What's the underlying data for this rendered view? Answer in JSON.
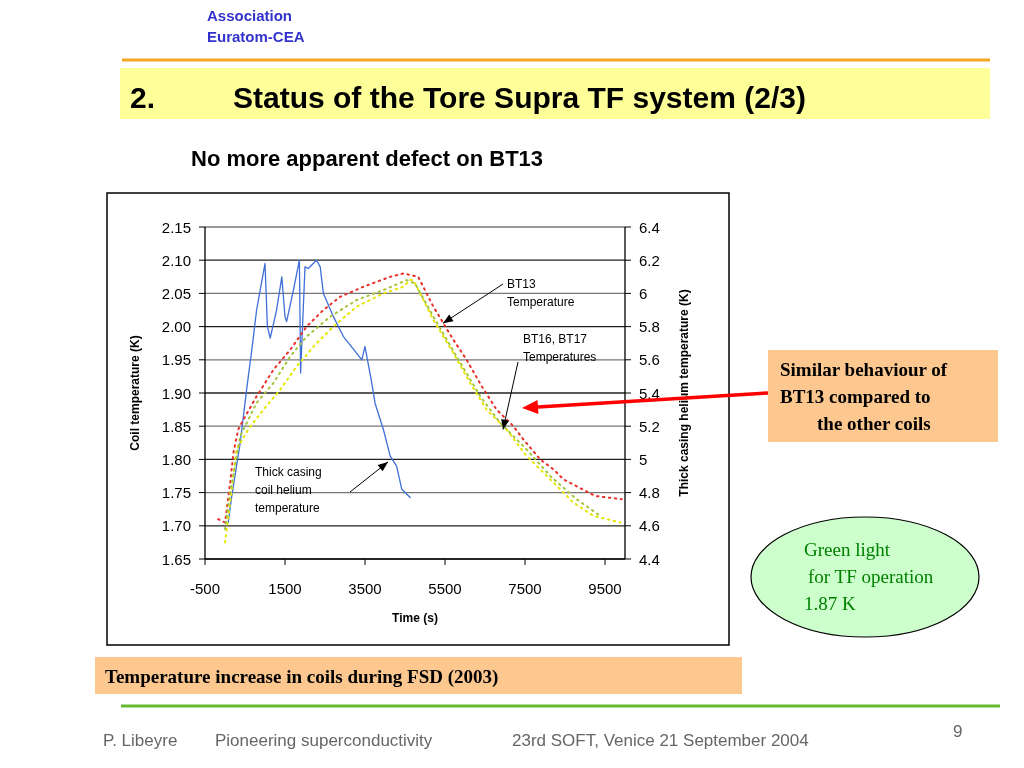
{
  "chart_data": {
    "type": "line",
    "title": "2. Status of the Tore Supra TF system (2/3)",
    "subtitle": "No more apparent defect on BT13",
    "xlabel": "Time (s)",
    "ylabel": "Coil temperature (K)",
    "y2label": "Thick casing helium temperature (K)",
    "xlim": [
      -500,
      10000
    ],
    "xticks": [
      -500,
      1500,
      3500,
      5500,
      7500,
      9500
    ],
    "ylim": [
      1.65,
      2.15
    ],
    "yticks": [
      1.65,
      {
        "value": 1.7,
        "label": "1.70"
      },
      1.75,
      {
        "value": 1.8,
        "label": "1.80"
      },
      1.85,
      {
        "value": 1.9,
        "label": "1.90"
      },
      1.95,
      {
        "value": 2.0,
        "label": "2.00"
      },
      2.05,
      {
        "value": 2.1,
        "label": "2.10"
      },
      2.15
    ],
    "y2lim": [
      4.4,
      6.4
    ],
    "y2ticks": [
      4.4,
      4.6,
      4.8,
      5,
      5.2,
      5.4,
      5.6,
      5.8,
      6,
      6.2,
      6.4
    ],
    "grid": "y",
    "series": [
      {
        "color": "#3f6fd8",
        "axis": "y2",
        "line_style": "solid",
        "x": [
          80,
          170,
          380,
          540,
          670,
          790,
          880,
          1000,
          1060,
          1130,
          1290,
          1420,
          1500,
          1540,
          1710,
          1860,
          1890,
          2000,
          2080,
          2290,
          2380,
          2460,
          2710,
          2960,
          3290,
          3420,
          3500,
          3670,
          3750,
          3960,
          4130,
          4290,
          4420,
          4630
        ],
        "values": [
          4.62,
          4.78,
          5.1,
          5.42,
          5.66,
          5.9,
          6.02,
          6.18,
          5.8,
          5.73,
          5.9,
          6.1,
          5.86,
          5.83,
          6.02,
          6.2,
          5.52,
          6.16,
          6.15,
          6.2,
          6.16,
          6.0,
          5.86,
          5.74,
          5.64,
          5.6,
          5.68,
          5.46,
          5.34,
          5.18,
          5.02,
          4.96,
          4.82,
          4.77
        ]
      },
      {
        "color": "#e8302a",
        "line_style": "dotted",
        "x": [
          -170,
          0,
          130,
          210,
          330,
          460,
          790,
          1210,
          1630,
          2040,
          2460,
          2880,
          3460,
          4130,
          4460,
          4830,
          5210,
          5460,
          5710,
          6040,
          6420,
          6790,
          7210,
          7460,
          7880,
          8210,
          8460,
          9250,
          9920
        ],
        "values": [
          1.71,
          1.705,
          1.765,
          1.81,
          1.845,
          1.86,
          1.895,
          1.935,
          1.965,
          2.0,
          2.025,
          2.045,
          2.06,
          2.075,
          2.08,
          2.075,
          2.03,
          2.005,
          1.98,
          1.95,
          1.91,
          1.875,
          1.85,
          1.83,
          1.8,
          1.785,
          1.77,
          1.745,
          1.74
        ]
      },
      {
        "color": "#e6e600",
        "line_style": "dotted",
        "x": [
          0,
          130,
          290,
          580,
          960,
          1380,
          1790,
          2290,
          2710,
          3290,
          3960,
          4460,
          4630,
          4710,
          5210,
          5710,
          6130,
          6540,
          7040,
          7540,
          8130,
          8710,
          9210,
          9880
        ],
        "values": [
          1.675,
          1.735,
          1.815,
          1.845,
          1.875,
          1.905,
          1.94,
          1.975,
          2.0,
          2.03,
          2.05,
          2.06,
          2.07,
          2.07,
          2.01,
          1.96,
          1.915,
          1.875,
          1.845,
          1.805,
          1.77,
          1.735,
          1.715,
          1.705
        ]
      },
      {
        "color": "#a4c43c",
        "line_style": "dotted",
        "x": [
          0,
          130,
          380,
          790,
          1210,
          1630,
          2040,
          2630,
          3290,
          3960,
          4540,
          4750,
          5210,
          5790,
          6380,
          6880,
          7540,
          8130,
          8790,
          9380
        ],
        "values": [
          1.695,
          1.75,
          1.835,
          1.885,
          1.915,
          1.955,
          1.985,
          2.015,
          2.04,
          2.055,
          2.07,
          2.065,
          2.015,
          1.955,
          1.895,
          1.855,
          1.815,
          1.775,
          1.74,
          1.715
        ]
      }
    ],
    "annotations": [
      "Association\nEuratom-CEA",
      {
        "text": "BT13\nTemperature",
        "x": 5450,
        "y": 2.005
      },
      {
        "text": "BT16, BT17\nTemperatures",
        "x": 6950,
        "y": 1.845
      },
      "Thick casing\ncoil helium\ntemperature",
      "Similar behaviour of\nBT13 compared to\nthe other coils",
      "Green light\nfor TF operation\n1.87 K",
      "Temperature increase in coils during FSD (2003)",
      "P. Libeyre",
      "Pioneering superconductivity",
      "23rd SOFT, Venice 21 September 2004",
      "9"
    ]
  }
}
